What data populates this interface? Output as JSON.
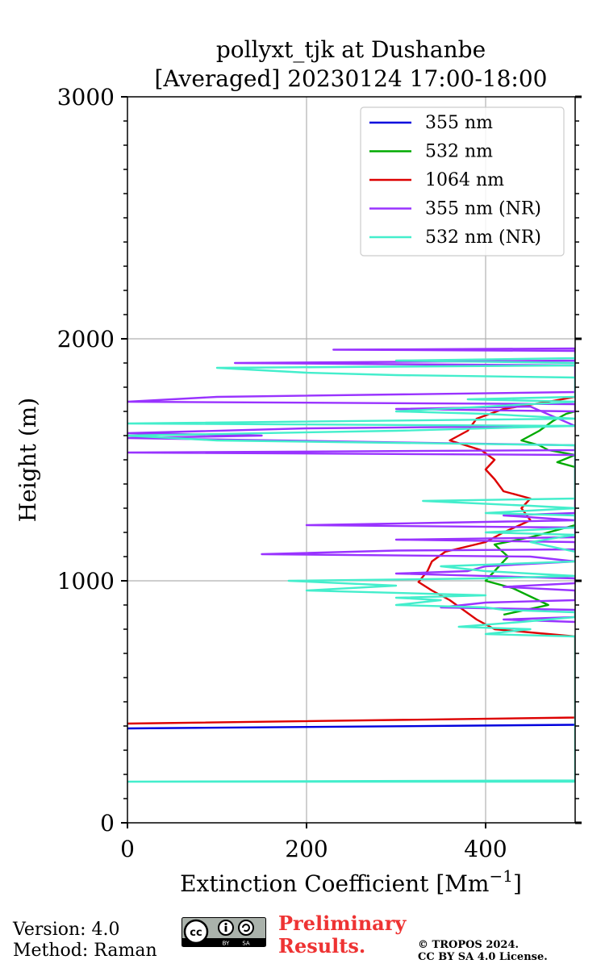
{
  "chart_data": {
    "type": "line",
    "title_line1": "pollyxt_tjk at Dushanbe",
    "title_line2": "[Averaged] 20230124 17:00-18:00",
    "xlabel": "Extinction Coefficient [Mm",
    "xlabel_sup": "−1",
    "xlabel_end": "]",
    "ylabel": "Height (m)",
    "xlim": [
      0,
      500
    ],
    "ylim": [
      0,
      3000
    ],
    "xticks": [
      "0",
      "200",
      "400"
    ],
    "yticks": [
      "0",
      "1000",
      "2000",
      "3000"
    ],
    "grid": true,
    "legend_position": "upper-right",
    "series": [
      {
        "name": "355 nm",
        "color": "#0000dd",
        "points": [
          [
            0,
            390
          ],
          [
            500,
            405
          ]
        ]
      },
      {
        "name": "532 nm",
        "color": "#00aa00",
        "points": [
          [
            420,
            860
          ],
          [
            470,
            900
          ],
          [
            430,
            970
          ],
          [
            400,
            1000
          ],
          [
            415,
            1060
          ],
          [
            425,
            1100
          ],
          [
            410,
            1150
          ],
          [
            450,
            1180
          ],
          [
            500,
            1230
          ],
          [
            500,
            1470
          ],
          [
            480,
            1490
          ],
          [
            500,
            1520
          ],
          [
            470,
            1540
          ],
          [
            460,
            1560
          ],
          [
            440,
            1580
          ],
          [
            460,
            1620
          ],
          [
            475,
            1660
          ],
          [
            490,
            1690
          ],
          [
            500,
            1700
          ]
        ]
      },
      {
        "name": "1064 nm",
        "color": "#dd0000",
        "points": [
          [
            0,
            410
          ],
          [
            500,
            435
          ],
          [
            500,
            770
          ],
          [
            470,
            780
          ],
          [
            410,
            800
          ],
          [
            390,
            840
          ],
          [
            360,
            920
          ],
          [
            340,
            960
          ],
          [
            325,
            995
          ],
          [
            335,
            1040
          ],
          [
            340,
            1080
          ],
          [
            355,
            1120
          ],
          [
            400,
            1160
          ],
          [
            420,
            1200
          ],
          [
            450,
            1250
          ],
          [
            440,
            1300
          ],
          [
            450,
            1340
          ],
          [
            420,
            1370
          ],
          [
            410,
            1420
          ],
          [
            400,
            1460
          ],
          [
            410,
            1500
          ],
          [
            395,
            1540
          ],
          [
            360,
            1580
          ],
          [
            380,
            1620
          ],
          [
            390,
            1670
          ],
          [
            420,
            1710
          ],
          [
            470,
            1740
          ],
          [
            500,
            1760
          ]
        ]
      },
      {
        "name": "355 nm (NR)",
        "color": "#9933ff",
        "points": [
          [
            500,
            1890
          ],
          [
            300,
            1895
          ],
          [
            120,
            1900
          ],
          [
            500,
            1910
          ],
          [
            500,
            1950
          ],
          [
            230,
            1955
          ],
          [
            500,
            1960
          ],
          [
            500,
            1780
          ],
          [
            100,
            1760
          ],
          [
            0,
            1740
          ],
          [
            500,
            1730
          ],
          [
            500,
            1700
          ],
          [
            300,
            1710
          ],
          [
            450,
            1720
          ],
          [
            500,
            1640
          ],
          [
            200,
            1630
          ],
          [
            0,
            1610
          ],
          [
            150,
            1600
          ],
          [
            0,
            1590
          ],
          [
            500,
            1560
          ],
          [
            500,
            1540
          ],
          [
            0,
            1530
          ],
          [
            500,
            1520
          ],
          [
            500,
            1280
          ],
          [
            420,
            1270
          ],
          [
            500,
            1250
          ],
          [
            350,
            1240
          ],
          [
            200,
            1230
          ],
          [
            500,
            1220
          ],
          [
            500,
            1180
          ],
          [
            300,
            1170
          ],
          [
            500,
            1160
          ],
          [
            500,
            1130
          ],
          [
            300,
            1125
          ],
          [
            150,
            1110
          ],
          [
            450,
            1100
          ],
          [
            500,
            1080
          ],
          [
            400,
            1060
          ],
          [
            380,
            1040
          ],
          [
            300,
            1030
          ],
          [
            500,
            1010
          ],
          [
            500,
            990
          ],
          [
            420,
            975
          ],
          [
            500,
            960
          ],
          [
            500,
            920
          ],
          [
            400,
            910
          ],
          [
            350,
            890
          ],
          [
            500,
            880
          ],
          [
            500,
            850
          ],
          [
            420,
            840
          ],
          [
            500,
            830
          ]
        ]
      },
      {
        "name": "532 nm (NR)",
        "color": "#44eecc",
        "points": [
          [
            500,
            170
          ],
          [
            0,
            170
          ],
          [
            500,
            175
          ],
          [
            500,
            770
          ],
          [
            400,
            780
          ],
          [
            450,
            800
          ],
          [
            370,
            810
          ],
          [
            440,
            830
          ],
          [
            500,
            850
          ],
          [
            500,
            870
          ],
          [
            420,
            880
          ],
          [
            400,
            890
          ],
          [
            300,
            900
          ],
          [
            350,
            920
          ],
          [
            300,
            930
          ],
          [
            400,
            940
          ],
          [
            200,
            960
          ],
          [
            300,
            980
          ],
          [
            180,
            1000
          ],
          [
            400,
            1010
          ],
          [
            500,
            1020
          ],
          [
            400,
            1040
          ],
          [
            350,
            1060
          ],
          [
            500,
            1080
          ],
          [
            500,
            1120
          ],
          [
            450,
            1160
          ],
          [
            500,
            1190
          ],
          [
            400,
            1200
          ],
          [
            500,
            1220
          ],
          [
            500,
            1270
          ],
          [
            400,
            1280
          ],
          [
            500,
            1300
          ],
          [
            450,
            1310
          ],
          [
            330,
            1330
          ],
          [
            500,
            1340
          ],
          [
            500,
            1560
          ],
          [
            300,
            1570
          ],
          [
            100,
            1580
          ],
          [
            0,
            1600
          ],
          [
            300,
            1620
          ],
          [
            500,
            1640
          ],
          [
            0,
            1650
          ],
          [
            500,
            1670
          ],
          [
            400,
            1690
          ],
          [
            300,
            1700
          ],
          [
            500,
            1740
          ],
          [
            380,
            1750
          ],
          [
            500,
            1760
          ],
          [
            500,
            1840
          ],
          [
            300,
            1850
          ],
          [
            200,
            1860
          ],
          [
            100,
            1880
          ],
          [
            500,
            1890
          ],
          [
            500,
            1900
          ],
          [
            300,
            1910
          ],
          [
            500,
            1920
          ],
          [
            500,
            1940
          ]
        ]
      }
    ]
  },
  "footer": {
    "version": "Version: 4.0",
    "method": "Method: Raman",
    "license_badge": "cc BY SA",
    "preliminary_line1": "Preliminary",
    "preliminary_line2": "Results.",
    "copyright_line1": "© TROPOS 2024.",
    "copyright_line2": "CC BY SA 4.0 License."
  },
  "colors": {
    "grid": "#b0b0b0",
    "preliminary": "#ee3333"
  }
}
